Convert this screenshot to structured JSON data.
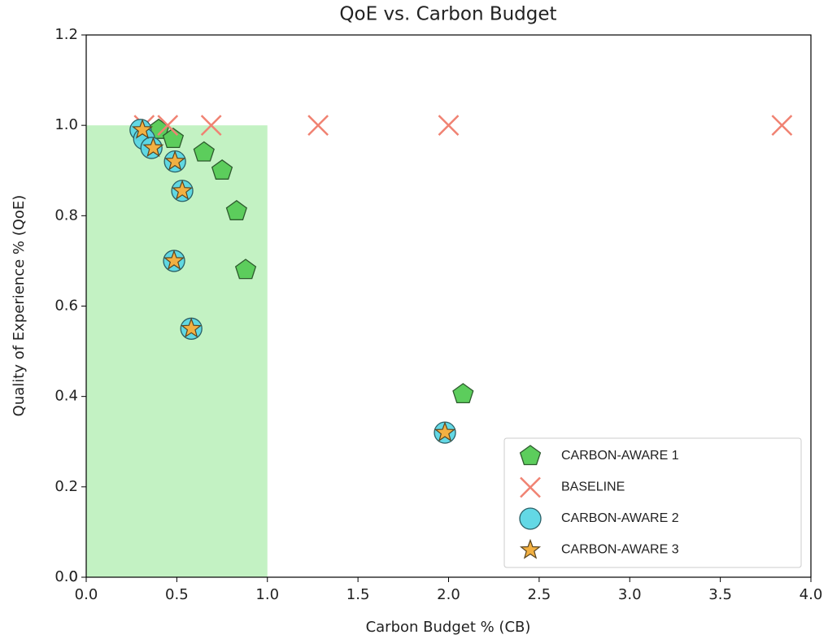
{
  "chart_data": {
    "type": "scatter",
    "title": "QoE vs. Carbon Budget",
    "xlabel": "Carbon Budget % (CB)",
    "ylabel": "Quality of Experience % (QoE)",
    "xlim": [
      0,
      4
    ],
    "ylim": [
      0,
      1.2
    ],
    "xticks": [
      {
        "value": 0,
        "label": "0.0"
      },
      0.5,
      {
        "value": 1,
        "label": "1.0"
      },
      1.5,
      {
        "value": 2,
        "label": "2.0"
      },
      2.5,
      {
        "value": 3,
        "label": "3.0"
      },
      3.5,
      {
        "value": 4,
        "label": "4.0"
      }
    ],
    "yticks": [
      {
        "value": 0,
        "label": "0.0"
      },
      0.2,
      0.4,
      0.6,
      0.8,
      {
        "value": 1,
        "label": "1.0"
      },
      0.0,
      1.2
    ],
    "shaded_region": {
      "xlim": [
        0,
        1
      ],
      "ylim": [
        0,
        1
      ],
      "color": "#c3f2c3"
    },
    "legend": "lower right",
    "series": [
      {
        "name": "CARBON-AWARE 1",
        "marker": "pentagon",
        "color": "#5ccd5c",
        "x": [
          0.4,
          0.48,
          0.65,
          0.75,
          0.83,
          0.88,
          2.08
        ],
        "values": [
          0.99,
          0.97,
          0.94,
          0.9,
          0.81,
          0.68,
          0.405
        ]
      },
      {
        "name": "BASELINE",
        "marker": "x",
        "color": "#f08272",
        "x": [
          0.32,
          0.45,
          0.69,
          1.28,
          2.0,
          3.84
        ],
        "values": [
          1.0,
          1.0,
          1.0,
          1.0,
          1.0,
          1.0
        ]
      },
      {
        "name": "CARBON-AWARE 2",
        "marker": "circle",
        "color": "#5bd6e4",
        "x": [
          0.3,
          0.32,
          0.36,
          0.49,
          0.53,
          0.485,
          0.58,
          1.98
        ],
        "values": [
          0.99,
          0.97,
          0.95,
          0.92,
          0.855,
          0.7,
          0.55,
          0.32
        ]
      },
      {
        "name": "CARBON-AWARE 3",
        "marker": "star",
        "color": "#f2b042",
        "x": [
          0.31,
          0.37,
          0.49,
          0.53,
          0.485,
          0.58,
          1.98
        ],
        "values": [
          0.99,
          0.95,
          0.92,
          0.855,
          0.7,
          0.55,
          0.32
        ]
      }
    ]
  }
}
